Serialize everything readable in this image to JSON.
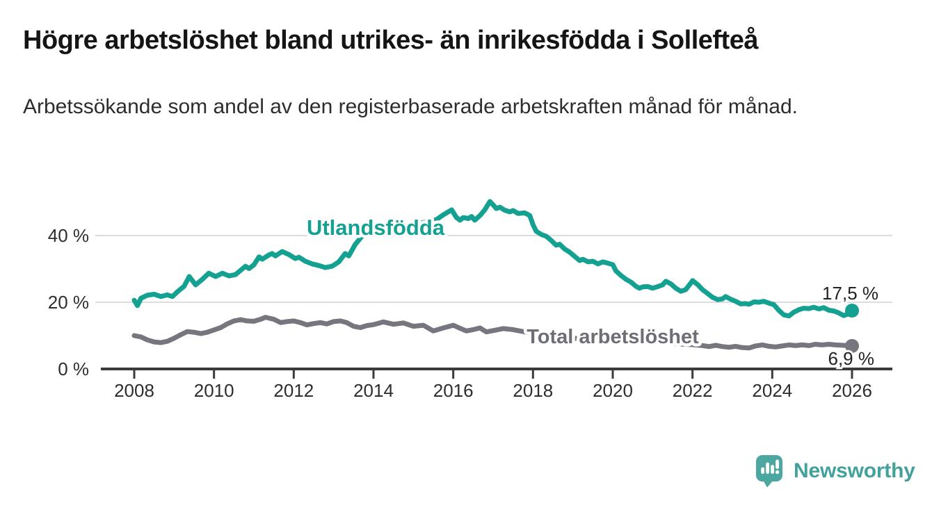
{
  "header": {
    "title": "Högre arbetslöshet bland utrikes- än inrikesfödda i Sollefteå",
    "subtitle": "Arbetssökande som andel av den registerbaserade arbetskraften månad för månad."
  },
  "colors": {
    "series_utlandsfodda": "#14a192",
    "series_total": "#76767e",
    "series_total_label": "#6e6e77",
    "grid": "#dcdcdc",
    "axis": "#3b3b3b",
    "tick_text": "#2d2d2d",
    "value_label_text": "#222222",
    "logo_teal": "#4ba7a0"
  },
  "chart_data": {
    "type": "line",
    "title": "Högre arbetslöshet bland utrikes- än inrikesfödda i Sollefteå",
    "xlabel": "",
    "ylabel": "",
    "xlim": [
      2008,
      2026
    ],
    "ylim": [
      0,
      52
    ],
    "grid": "horizontal",
    "legend_position": "inline-labels",
    "x_ticks": [
      "2008",
      "2010",
      "2012",
      "2014",
      "2016",
      "2018",
      "2020",
      "2022",
      "2024",
      "2026"
    ],
    "x_tick_values": [
      2008,
      2010,
      2012,
      2014,
      2016,
      2018,
      2020,
      2022,
      2024,
      2026
    ],
    "y_ticks": [
      {
        "value": 0,
        "label": "0 %"
      },
      {
        "value": 20,
        "label": "20 %"
      },
      {
        "value": 40,
        "label": "40 %"
      }
    ],
    "series": [
      {
        "name": "Utlandsfödda",
        "color": "#14a192",
        "end_label": "17,5 %",
        "end_value": 17.5,
        "points": [
          [
            2008.0,
            20.6
          ],
          [
            2008.08,
            19.0
          ],
          [
            2008.17,
            21.2
          ],
          [
            2008.33,
            22.1
          ],
          [
            2008.5,
            22.4
          ],
          [
            2008.67,
            21.7
          ],
          [
            2008.83,
            22.2
          ],
          [
            2008.96,
            21.7
          ],
          [
            2009.08,
            23.1
          ],
          [
            2009.25,
            24.8
          ],
          [
            2009.38,
            27.7
          ],
          [
            2009.54,
            25.2
          ],
          [
            2009.71,
            26.9
          ],
          [
            2009.87,
            28.7
          ],
          [
            2010.04,
            27.7
          ],
          [
            2010.21,
            28.7
          ],
          [
            2010.38,
            27.9
          ],
          [
            2010.54,
            28.3
          ],
          [
            2010.71,
            30.0
          ],
          [
            2010.79,
            30.8
          ],
          [
            2010.88,
            30.1
          ],
          [
            2011.0,
            31.2
          ],
          [
            2011.13,
            33.6
          ],
          [
            2011.21,
            32.9
          ],
          [
            2011.38,
            34.2
          ],
          [
            2011.46,
            34.6
          ],
          [
            2011.54,
            33.9
          ],
          [
            2011.71,
            35.2
          ],
          [
            2011.88,
            34.3
          ],
          [
            2012.04,
            33.1
          ],
          [
            2012.13,
            33.5
          ],
          [
            2012.29,
            32.3
          ],
          [
            2012.46,
            31.5
          ],
          [
            2012.63,
            31.0
          ],
          [
            2012.79,
            30.4
          ],
          [
            2012.96,
            30.8
          ],
          [
            2013.13,
            32.1
          ],
          [
            2013.29,
            34.6
          ],
          [
            2013.38,
            33.9
          ],
          [
            2013.54,
            37.3
          ],
          [
            2013.71,
            39.8
          ],
          [
            2013.88,
            40.4
          ],
          [
            2014.08,
            41.0
          ],
          [
            2014.33,
            41.7
          ],
          [
            2014.58,
            42.3
          ],
          [
            2014.83,
            42.9
          ],
          [
            2015.08,
            43.5
          ],
          [
            2015.33,
            44.1
          ],
          [
            2015.58,
            44.8
          ],
          [
            2015.75,
            46.2
          ],
          [
            2015.96,
            47.7
          ],
          [
            2016.08,
            45.4
          ],
          [
            2016.17,
            44.6
          ],
          [
            2016.25,
            45.4
          ],
          [
            2016.38,
            45.1
          ],
          [
            2016.46,
            45.7
          ],
          [
            2016.54,
            44.6
          ],
          [
            2016.67,
            46.0
          ],
          [
            2016.79,
            47.7
          ],
          [
            2016.92,
            50.2
          ],
          [
            2017.0,
            49.2
          ],
          [
            2017.08,
            48.1
          ],
          [
            2017.17,
            48.5
          ],
          [
            2017.29,
            47.6
          ],
          [
            2017.42,
            47.1
          ],
          [
            2017.5,
            47.5
          ],
          [
            2017.63,
            46.6
          ],
          [
            2017.79,
            46.8
          ],
          [
            2017.92,
            46.0
          ],
          [
            2018.0,
            43.3
          ],
          [
            2018.08,
            41.3
          ],
          [
            2018.21,
            40.3
          ],
          [
            2018.33,
            39.8
          ],
          [
            2018.46,
            38.5
          ],
          [
            2018.58,
            37.1
          ],
          [
            2018.67,
            37.4
          ],
          [
            2018.79,
            36.0
          ],
          [
            2018.92,
            35.0
          ],
          [
            2019.04,
            33.8
          ],
          [
            2019.17,
            32.5
          ],
          [
            2019.25,
            32.9
          ],
          [
            2019.38,
            32.1
          ],
          [
            2019.5,
            32.3
          ],
          [
            2019.63,
            31.5
          ],
          [
            2019.75,
            32.1
          ],
          [
            2019.88,
            31.7
          ],
          [
            2020.0,
            31.3
          ],
          [
            2020.08,
            29.4
          ],
          [
            2020.21,
            28.0
          ],
          [
            2020.33,
            26.9
          ],
          [
            2020.46,
            26.0
          ],
          [
            2020.58,
            24.8
          ],
          [
            2020.67,
            24.2
          ],
          [
            2020.75,
            24.6
          ],
          [
            2020.88,
            24.7
          ],
          [
            2021.0,
            24.2
          ],
          [
            2021.13,
            24.7
          ],
          [
            2021.25,
            25.2
          ],
          [
            2021.33,
            26.3
          ],
          [
            2021.46,
            25.5
          ],
          [
            2021.58,
            24.2
          ],
          [
            2021.71,
            23.3
          ],
          [
            2021.83,
            23.8
          ],
          [
            2021.96,
            25.8
          ],
          [
            2022.0,
            26.5
          ],
          [
            2022.13,
            25.3
          ],
          [
            2022.25,
            23.8
          ],
          [
            2022.38,
            22.6
          ],
          [
            2022.5,
            21.5
          ],
          [
            2022.63,
            20.8
          ],
          [
            2022.75,
            21.0
          ],
          [
            2022.83,
            21.7
          ],
          [
            2022.96,
            20.9
          ],
          [
            2023.08,
            20.3
          ],
          [
            2023.21,
            19.5
          ],
          [
            2023.33,
            19.6
          ],
          [
            2023.42,
            19.4
          ],
          [
            2023.54,
            20.1
          ],
          [
            2023.67,
            20.0
          ],
          [
            2023.79,
            20.3
          ],
          [
            2023.92,
            19.7
          ],
          [
            2024.04,
            19.3
          ],
          [
            2024.17,
            17.5
          ],
          [
            2024.29,
            16.2
          ],
          [
            2024.42,
            15.9
          ],
          [
            2024.54,
            17.0
          ],
          [
            2024.67,
            17.8
          ],
          [
            2024.79,
            18.2
          ],
          [
            2024.92,
            18.1
          ],
          [
            2025.04,
            18.5
          ],
          [
            2025.17,
            18.0
          ],
          [
            2025.29,
            18.4
          ],
          [
            2025.42,
            17.6
          ],
          [
            2025.54,
            17.4
          ],
          [
            2025.67,
            16.8
          ],
          [
            2025.79,
            16.0
          ],
          [
            2025.88,
            16.4
          ],
          [
            2026.0,
            17.5
          ]
        ]
      },
      {
        "name": "Total arbetslöshet",
        "color": "#76767e",
        "end_label": "6,9 %",
        "end_value": 6.9,
        "points": [
          [
            2008.0,
            10.0
          ],
          [
            2008.17,
            9.6
          ],
          [
            2008.33,
            8.7
          ],
          [
            2008.5,
            8.1
          ],
          [
            2008.67,
            7.9
          ],
          [
            2008.83,
            8.3
          ],
          [
            2009.0,
            9.2
          ],
          [
            2009.17,
            10.3
          ],
          [
            2009.33,
            11.2
          ],
          [
            2009.5,
            11.0
          ],
          [
            2009.67,
            10.6
          ],
          [
            2009.83,
            11.0
          ],
          [
            2010.0,
            11.7
          ],
          [
            2010.17,
            12.4
          ],
          [
            2010.33,
            13.5
          ],
          [
            2010.5,
            14.4
          ],
          [
            2010.67,
            14.8
          ],
          [
            2010.83,
            14.4
          ],
          [
            2011.0,
            14.3
          ],
          [
            2011.17,
            14.9
          ],
          [
            2011.29,
            15.5
          ],
          [
            2011.5,
            14.9
          ],
          [
            2011.67,
            13.9
          ],
          [
            2011.83,
            14.2
          ],
          [
            2012.0,
            14.4
          ],
          [
            2012.17,
            13.9
          ],
          [
            2012.33,
            13.2
          ],
          [
            2012.5,
            13.6
          ],
          [
            2012.67,
            13.9
          ],
          [
            2012.83,
            13.5
          ],
          [
            2013.0,
            14.2
          ],
          [
            2013.17,
            14.4
          ],
          [
            2013.33,
            13.9
          ],
          [
            2013.5,
            12.8
          ],
          [
            2013.67,
            12.4
          ],
          [
            2013.83,
            13.0
          ],
          [
            2014.0,
            13.3
          ],
          [
            2014.25,
            14.1
          ],
          [
            2014.5,
            13.4
          ],
          [
            2014.75,
            13.8
          ],
          [
            2015.0,
            12.8
          ],
          [
            2015.25,
            13.1
          ],
          [
            2015.5,
            11.4
          ],
          [
            2015.75,
            12.3
          ],
          [
            2016.0,
            13.1
          ],
          [
            2016.17,
            12.2
          ],
          [
            2016.33,
            11.4
          ],
          [
            2016.5,
            11.8
          ],
          [
            2016.67,
            12.3
          ],
          [
            2016.83,
            11.1
          ],
          [
            2017.0,
            11.5
          ],
          [
            2017.25,
            12.1
          ],
          [
            2017.5,
            11.8
          ],
          [
            2017.75,
            11.2
          ],
          [
            2018.0,
            10.6
          ],
          [
            2018.33,
            10.0
          ],
          [
            2018.67,
            9.5
          ],
          [
            2019.0,
            9.2
          ],
          [
            2019.33,
            8.9
          ],
          [
            2019.67,
            8.8
          ],
          [
            2020.0,
            9.3
          ],
          [
            2020.33,
            9.6
          ],
          [
            2020.67,
            9.0
          ],
          [
            2021.0,
            8.3
          ],
          [
            2021.33,
            7.8
          ],
          [
            2021.67,
            7.5
          ],
          [
            2022.0,
            7.3
          ],
          [
            2022.25,
            7.0
          ],
          [
            2022.42,
            6.7
          ],
          [
            2022.58,
            7.1
          ],
          [
            2022.75,
            6.7
          ],
          [
            2022.92,
            6.5
          ],
          [
            2023.08,
            6.8
          ],
          [
            2023.25,
            6.4
          ],
          [
            2023.42,
            6.3
          ],
          [
            2023.58,
            6.9
          ],
          [
            2023.75,
            7.2
          ],
          [
            2023.92,
            6.8
          ],
          [
            2024.08,
            6.6
          ],
          [
            2024.25,
            6.9
          ],
          [
            2024.42,
            7.2
          ],
          [
            2024.58,
            7.0
          ],
          [
            2024.75,
            7.2
          ],
          [
            2024.92,
            7.0
          ],
          [
            2025.08,
            7.4
          ],
          [
            2025.25,
            7.2
          ],
          [
            2025.42,
            7.4
          ],
          [
            2025.58,
            7.2
          ],
          [
            2025.75,
            7.1
          ],
          [
            2025.88,
            7.0
          ],
          [
            2026.0,
            6.9
          ]
        ]
      }
    ]
  },
  "footer": {
    "brand": "Newsworthy"
  }
}
